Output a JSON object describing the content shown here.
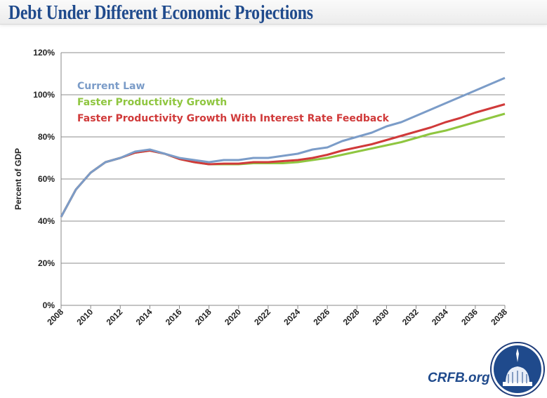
{
  "header": {
    "title": "Debt Under Different Economic Projections"
  },
  "branding": {
    "site": "CRFB.org",
    "logo": "capitol-dome-seal"
  },
  "chart_data": {
    "type": "line",
    "title": "",
    "xlabel": "",
    "ylabel": "Percent of GDP",
    "ylim": [
      0,
      120
    ],
    "yticks": [
      "0%",
      "20%",
      "40%",
      "60%",
      "80%",
      "100%",
      "120%"
    ],
    "xticks": [
      "2008",
      "2010",
      "2012",
      "2014",
      "2016",
      "2018",
      "2020",
      "2022",
      "2024",
      "2026",
      "2028",
      "2030",
      "2032",
      "2034",
      "2036",
      "2038"
    ],
    "grid": true,
    "legend_placement": "top-left",
    "x": [
      2008,
      2009,
      2010,
      2011,
      2012,
      2013,
      2014,
      2015,
      2016,
      2017,
      2018,
      2019,
      2020,
      2021,
      2022,
      2023,
      2024,
      2025,
      2026,
      2027,
      2028,
      2029,
      2030,
      2031,
      2032,
      2033,
      2034,
      2035,
      2036,
      2037,
      2038
    ],
    "series": [
      {
        "name": "Current Law",
        "color": "#7b9cc8",
        "values": [
          42,
          55,
          63,
          68,
          70,
          73,
          74,
          72,
          70,
          69,
          68,
          69,
          69,
          70,
          70,
          71,
          72,
          74,
          75,
          78,
          80,
          82,
          85,
          87,
          90,
          93,
          96,
          99,
          102,
          105,
          108
        ]
      },
      {
        "name": "Faster Productivity Growth",
        "color": "#8fc640",
        "values": [
          42,
          55,
          63,
          68,
          70,
          72.5,
          73.5,
          72,
          69.5,
          68,
          67,
          67,
          67,
          67.5,
          67.5,
          67.5,
          68,
          69,
          70,
          71.5,
          73,
          74.5,
          76,
          77.5,
          79.5,
          81.5,
          83,
          85,
          87,
          89,
          91
        ]
      },
      {
        "name": "Faster Productivity Growth With Interest Rate Feedback",
        "color": "#d03a3a",
        "values": [
          42,
          55,
          63,
          68,
          70,
          72.5,
          73.5,
          72,
          69.5,
          68,
          67,
          67.3,
          67.3,
          68,
          68,
          68.5,
          69,
          70,
          71.5,
          73.5,
          75,
          76.5,
          78.5,
          80.5,
          82.5,
          84.5,
          87,
          89,
          91.5,
          93.5,
          95.5
        ]
      }
    ]
  }
}
